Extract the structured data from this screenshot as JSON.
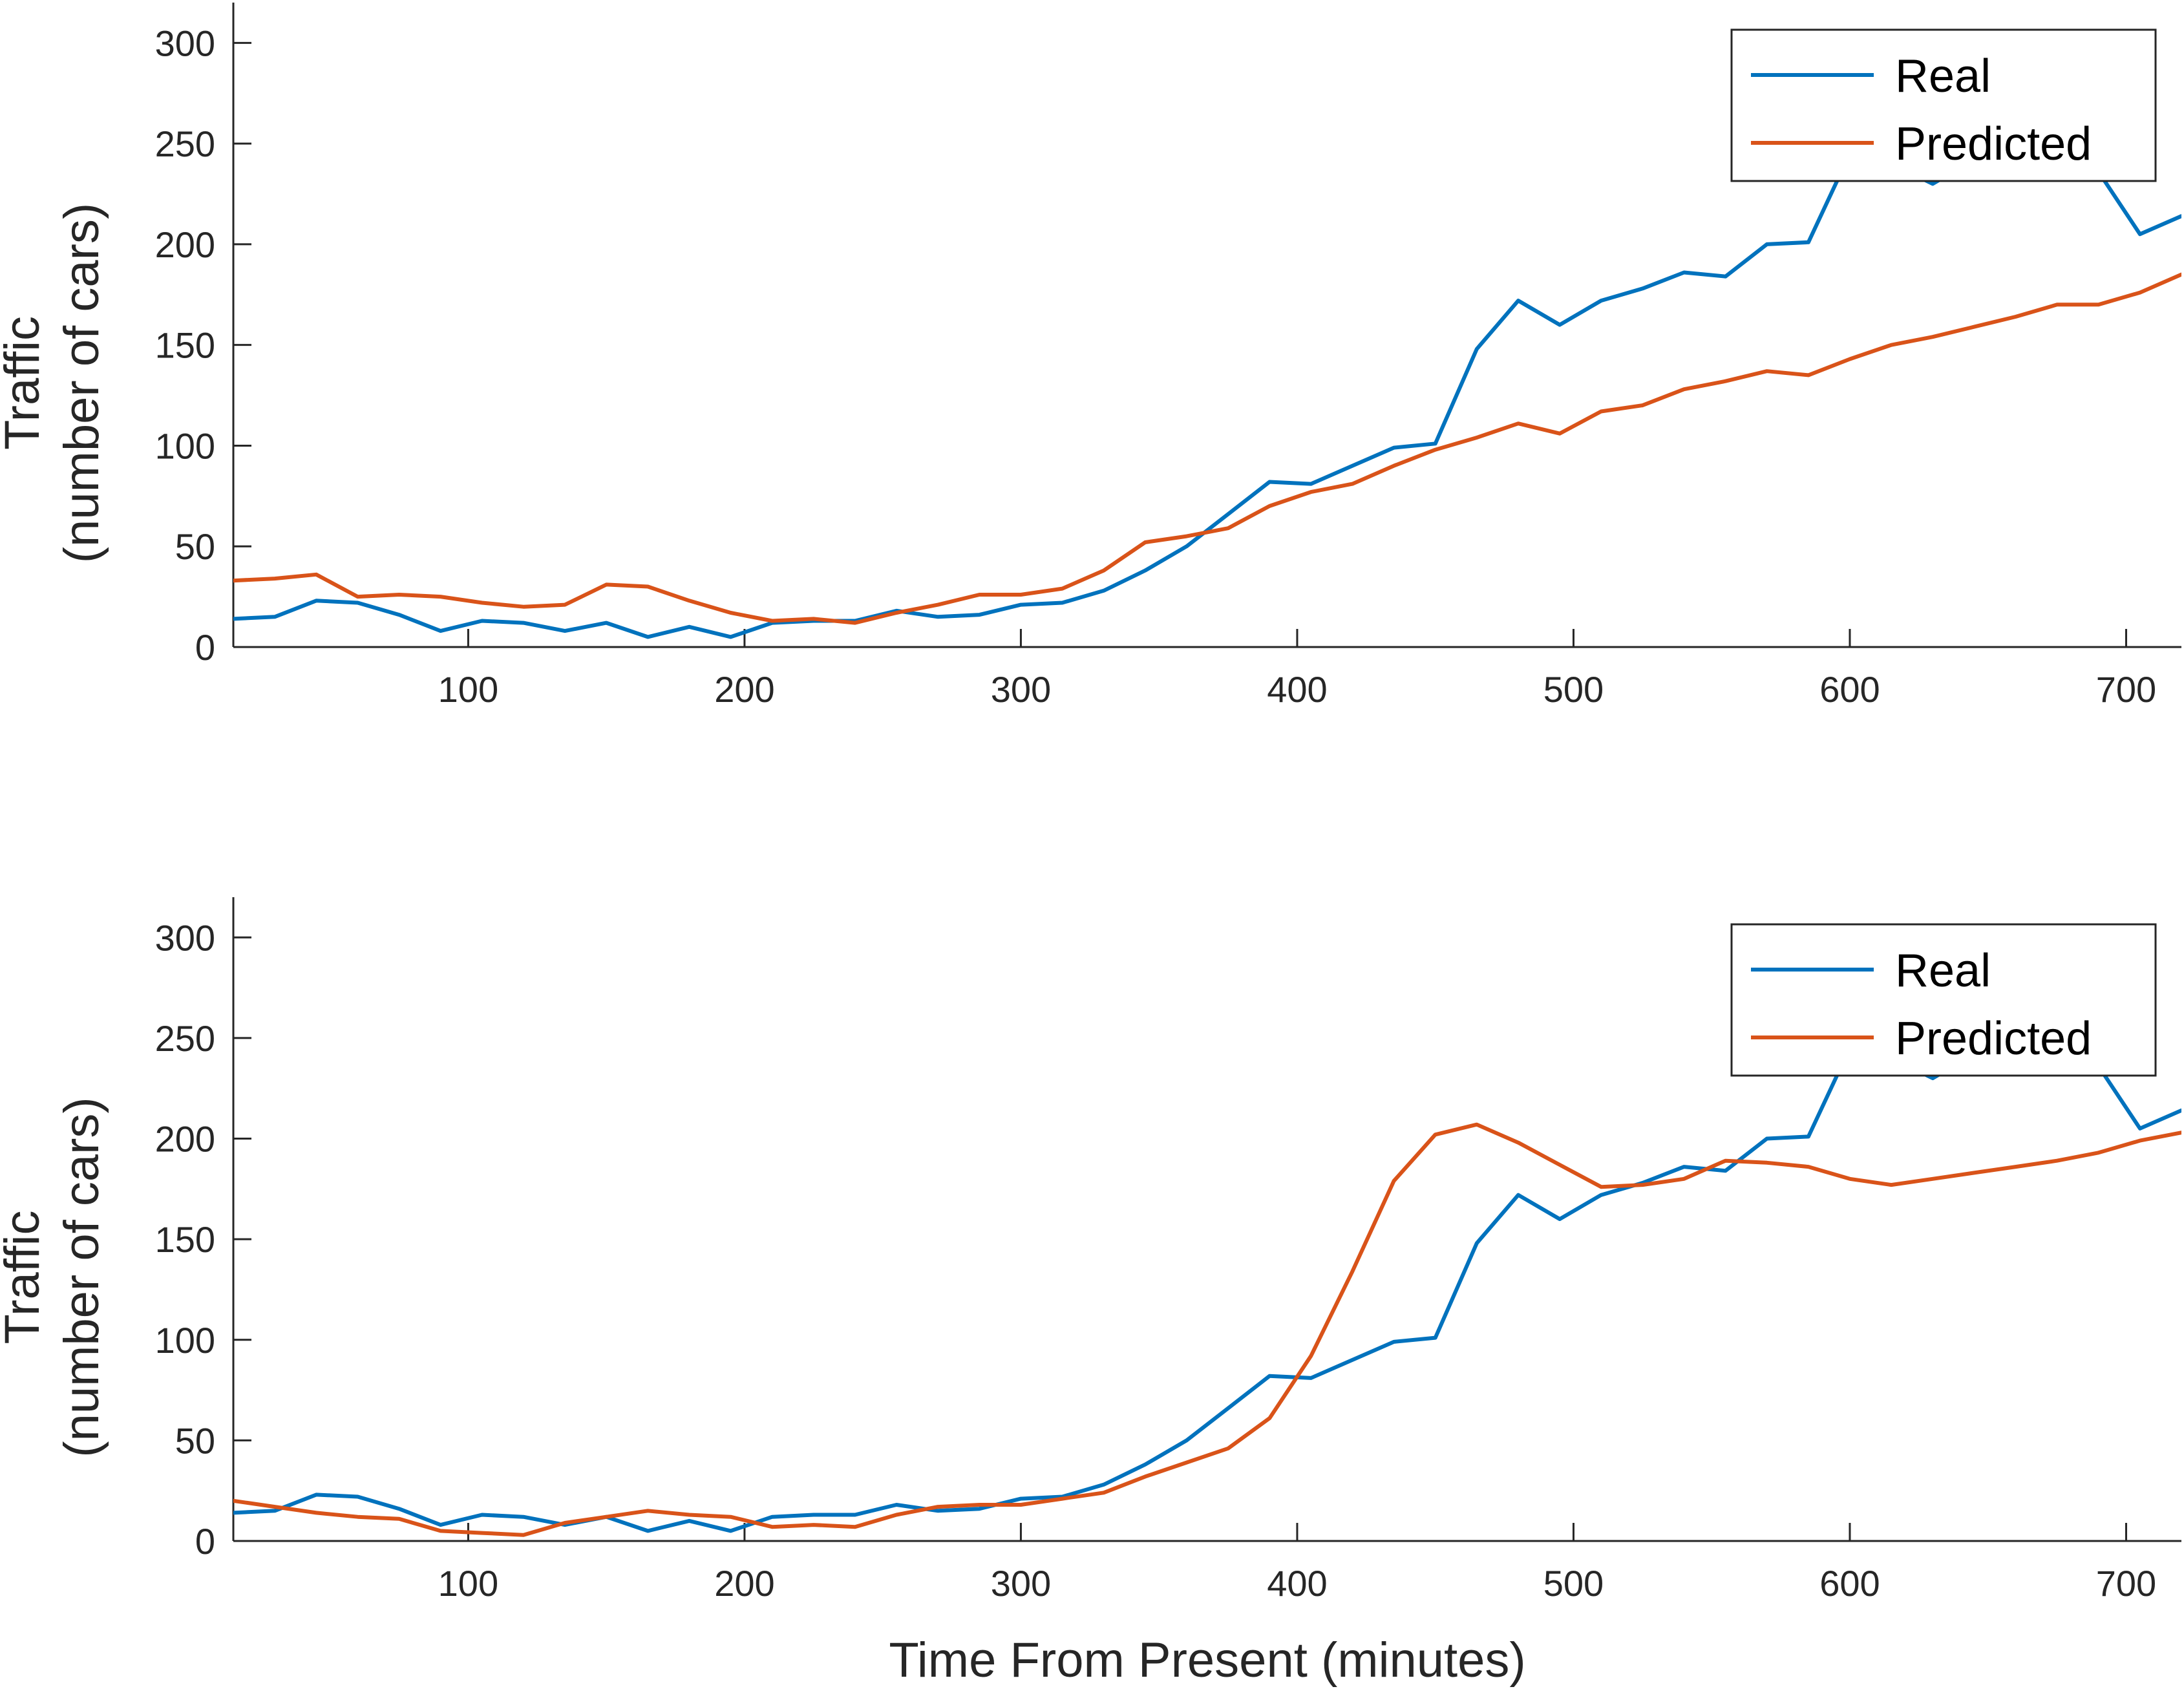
{
  "chart_data": [
    {
      "type": "line",
      "xlabel": "",
      "ylabel": [
        "Traffic",
        "(number of cars)"
      ],
      "xlim": [
        15,
        720
      ],
      "ylim": [
        0,
        320
      ],
      "xticks": [
        100,
        200,
        300,
        400,
        500,
        600,
        700
      ],
      "yticks": [
        0,
        50,
        100,
        150,
        200,
        250,
        300
      ],
      "legend": "top-right",
      "grid": false,
      "series": [
        {
          "name": "Real",
          "color": "#0072BD",
          "x": [
            15,
            30,
            45,
            60,
            75,
            90,
            105,
            120,
            135,
            150,
            165,
            180,
            195,
            210,
            225,
            240,
            255,
            270,
            285,
            300,
            315,
            330,
            345,
            360,
            375,
            390,
            405,
            420,
            435,
            450,
            465,
            480,
            495,
            510,
            525,
            540,
            555,
            570,
            585,
            600,
            615,
            630,
            645,
            660,
            675,
            690,
            705,
            720
          ],
          "values": [
            14,
            15,
            23,
            22,
            16,
            8,
            13,
            12,
            8,
            12,
            5,
            10,
            5,
            12,
            13,
            13,
            18,
            15,
            16,
            21,
            22,
            28,
            38,
            50,
            66,
            82,
            81,
            90,
            99,
            101,
            148,
            172,
            160,
            172,
            178,
            186,
            184,
            200,
            201,
            245,
            240,
            230,
            242,
            248,
            250,
            236,
            205,
            214
          ]
        },
        {
          "name": "Predicted",
          "color": "#D95319",
          "x": [
            15,
            30,
            45,
            60,
            75,
            90,
            105,
            120,
            135,
            150,
            165,
            180,
            195,
            210,
            225,
            240,
            255,
            270,
            285,
            300,
            315,
            330,
            345,
            360,
            375,
            390,
            405,
            420,
            435,
            450,
            465,
            480,
            495,
            510,
            525,
            540,
            555,
            570,
            585,
            600,
            615,
            630,
            645,
            660,
            675,
            690,
            705,
            720
          ],
          "values": [
            33,
            34,
            36,
            25,
            26,
            25,
            22,
            20,
            21,
            31,
            30,
            23,
            17,
            13,
            14,
            12,
            17,
            21,
            26,
            26,
            29,
            38,
            52,
            55,
            59,
            70,
            77,
            81,
            90,
            98,
            104,
            111,
            106,
            117,
            120,
            128,
            132,
            137,
            135,
            143,
            150,
            154,
            159,
            164,
            170,
            170,
            176,
            185
          ]
        }
      ]
    },
    {
      "type": "line",
      "xlabel": "Time From Present (minutes)",
      "ylabel": [
        "Traffic",
        "(number of cars)"
      ],
      "xlim": [
        15,
        720
      ],
      "ylim": [
        0,
        320
      ],
      "xticks": [
        100,
        200,
        300,
        400,
        500,
        600,
        700
      ],
      "yticks": [
        0,
        50,
        100,
        150,
        200,
        250,
        300
      ],
      "legend": "top-right",
      "grid": false,
      "series": [
        {
          "name": "Real",
          "color": "#0072BD",
          "x": [
            15,
            30,
            45,
            60,
            75,
            90,
            105,
            120,
            135,
            150,
            165,
            180,
            195,
            210,
            225,
            240,
            255,
            270,
            285,
            300,
            315,
            330,
            345,
            360,
            375,
            390,
            405,
            420,
            435,
            450,
            465,
            480,
            495,
            510,
            525,
            540,
            555,
            570,
            585,
            600,
            615,
            630,
            645,
            660,
            675,
            690,
            705,
            720
          ],
          "values": [
            14,
            15,
            23,
            22,
            16,
            8,
            13,
            12,
            8,
            12,
            5,
            10,
            5,
            12,
            13,
            13,
            18,
            15,
            16,
            21,
            22,
            28,
            38,
            50,
            66,
            82,
            81,
            90,
            99,
            101,
            148,
            172,
            160,
            172,
            178,
            186,
            184,
            200,
            201,
            245,
            240,
            230,
            242,
            248,
            250,
            236,
            205,
            214
          ]
        },
        {
          "name": "Predicted",
          "color": "#D95319",
          "x": [
            15,
            30,
            45,
            60,
            75,
            90,
            105,
            120,
            135,
            150,
            165,
            180,
            195,
            210,
            225,
            240,
            255,
            270,
            285,
            300,
            315,
            330,
            345,
            360,
            375,
            390,
            405,
            420,
            435,
            450,
            465,
            480,
            495,
            510,
            525,
            540,
            555,
            570,
            585,
            600,
            615,
            630,
            645,
            660,
            675,
            690,
            705,
            720
          ],
          "values": [
            20,
            17,
            14,
            12,
            11,
            5,
            4,
            3,
            9,
            12,
            15,
            13,
            12,
            7,
            8,
            7,
            13,
            17,
            18,
            18,
            21,
            24,
            32,
            39,
            46,
            61,
            92,
            134,
            179,
            202,
            207,
            198,
            187,
            176,
            177,
            180,
            189,
            188,
            186,
            180,
            177,
            180,
            183,
            186,
            189,
            193,
            199,
            203
          ]
        }
      ]
    }
  ]
}
